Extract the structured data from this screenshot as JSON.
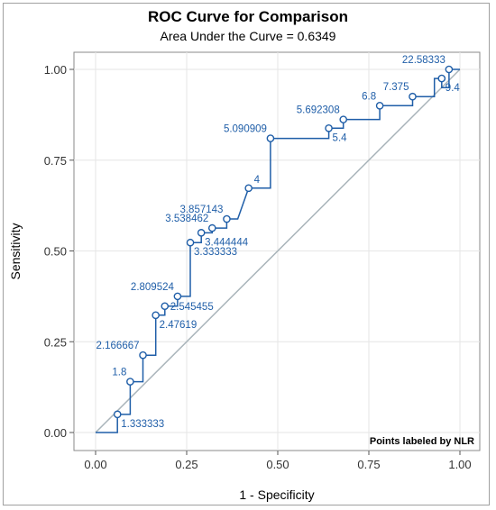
{
  "chart_data": {
    "type": "line",
    "title": "ROC Curve for Comparison",
    "subtitle": "Area Under the Curve = 0.6349",
    "xlabel": "1 - Specificity",
    "ylabel": "Sensitivity",
    "xlim": [
      -0.07,
      1.03
    ],
    "ylim": [
      -0.05,
      1.05
    ],
    "xticks": [
      "0.00",
      "0.25",
      "0.50",
      "0.75",
      "1.00"
    ],
    "yticks": [
      "0.00",
      "0.25",
      "0.50",
      "0.75",
      "1.00"
    ],
    "grid": true,
    "reference_line": "diagonal",
    "footnote": "Points labeled by NLR",
    "colors": {
      "curve": "#1f5ea8",
      "reference": "#a9b4ba",
      "grid": "#e6e6e6"
    },
    "curve": [
      [
        0.0,
        0.0
      ],
      [
        0.06,
        0.0
      ],
      [
        0.06,
        0.05
      ],
      [
        0.095,
        0.05
      ],
      [
        0.095,
        0.14
      ],
      [
        0.13,
        0.14
      ],
      [
        0.13,
        0.213
      ],
      [
        0.165,
        0.213
      ],
      [
        0.165,
        0.323
      ],
      [
        0.19,
        0.323
      ],
      [
        0.19,
        0.348
      ],
      [
        0.225,
        0.348
      ],
      [
        0.225,
        0.375
      ],
      [
        0.26,
        0.375
      ],
      [
        0.26,
        0.523
      ],
      [
        0.29,
        0.523
      ],
      [
        0.29,
        0.55
      ],
      [
        0.32,
        0.55
      ],
      [
        0.32,
        0.563
      ],
      [
        0.36,
        0.563
      ],
      [
        0.36,
        0.588
      ],
      [
        0.39,
        0.588
      ],
      [
        0.42,
        0.673
      ],
      [
        0.48,
        0.673
      ],
      [
        0.48,
        0.81
      ],
      [
        0.64,
        0.81
      ],
      [
        0.64,
        0.838
      ],
      [
        0.68,
        0.838
      ],
      [
        0.68,
        0.862
      ],
      [
        0.78,
        0.862
      ],
      [
        0.78,
        0.9
      ],
      [
        0.87,
        0.9
      ],
      [
        0.87,
        0.925
      ],
      [
        0.93,
        0.925
      ],
      [
        0.93,
        0.975
      ],
      [
        0.95,
        0.975
      ],
      [
        0.95,
        0.95
      ],
      [
        0.97,
        0.95
      ],
      [
        0.97,
        1.0
      ],
      [
        1.0,
        1.0
      ]
    ],
    "points": [
      {
        "x": 0.06,
        "y": 0.05,
        "label": "1.333333",
        "pos": "right-below"
      },
      {
        "x": 0.095,
        "y": 0.14,
        "label": "1.8",
        "pos": "left-above"
      },
      {
        "x": 0.13,
        "y": 0.213,
        "label": "2.166667",
        "pos": "left-above"
      },
      {
        "x": 0.165,
        "y": 0.323,
        "label": "2.47619",
        "pos": "right-below"
      },
      {
        "x": 0.19,
        "y": 0.348,
        "label": "2.545455",
        "pos": "right"
      },
      {
        "x": 0.225,
        "y": 0.375,
        "label": "2.809524",
        "pos": "left-above"
      },
      {
        "x": 0.26,
        "y": 0.523,
        "label": "3.333333",
        "pos": "right-below"
      },
      {
        "x": 0.29,
        "y": 0.55,
        "label": "3.444444",
        "pos": "right-below"
      },
      {
        "x": 0.32,
        "y": 0.563,
        "label": "3.538462",
        "pos": "left-above"
      },
      {
        "x": 0.36,
        "y": 0.588,
        "label": "3.857143",
        "pos": "left-above"
      },
      {
        "x": 0.42,
        "y": 0.673,
        "label": "4",
        "pos": "right-above"
      },
      {
        "x": 0.48,
        "y": 0.81,
        "label": "5.090909",
        "pos": "left-above"
      },
      {
        "x": 0.64,
        "y": 0.838,
        "label": "5.4",
        "pos": "right-below"
      },
      {
        "x": 0.68,
        "y": 0.862,
        "label": "5.692308",
        "pos": "left-above"
      },
      {
        "x": 0.78,
        "y": 0.9,
        "label": "6.8",
        "pos": "left-above"
      },
      {
        "x": 0.87,
        "y": 0.925,
        "label": "7.375",
        "pos": "left-above"
      },
      {
        "x": 0.95,
        "y": 0.975,
        "label": "9.4",
        "pos": "right-below"
      },
      {
        "x": 0.97,
        "y": 1.0,
        "label": "22.58333",
        "pos": "left-above"
      }
    ]
  }
}
